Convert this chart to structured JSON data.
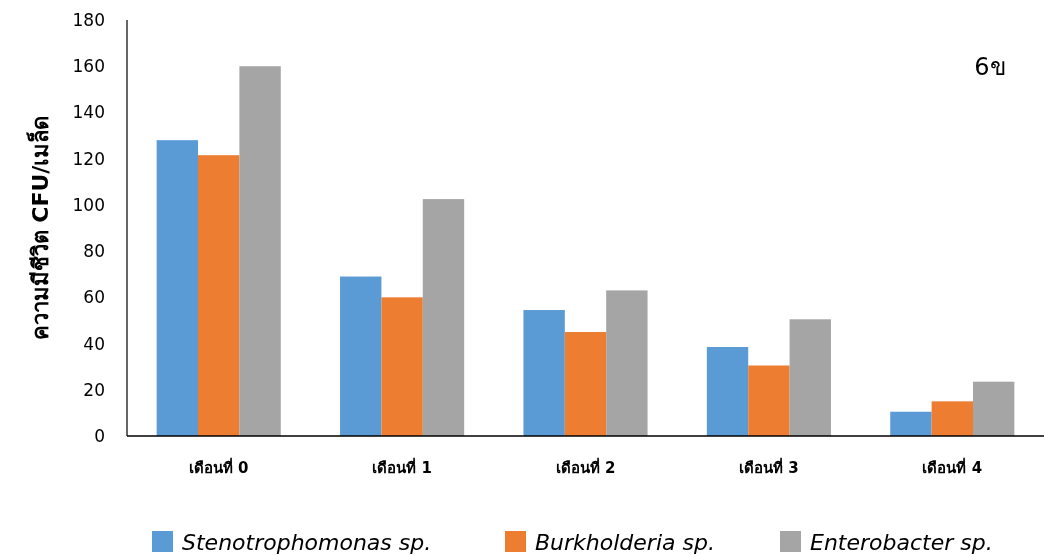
{
  "chart_data": {
    "type": "bar",
    "ylabel": "ความมีชีวิต CFU/เมล็ด",
    "categories": [
      "เดือนที่ 0",
      "เดือนที่ 1",
      "เดือนที่ 2",
      "เดือนที่ 3",
      "เดือนที่ 4"
    ],
    "series": [
      {
        "name": "Stenotrophomonas sp.",
        "color": "#5b9bd5",
        "values": [
          128,
          69,
          54.5,
          38.5,
          10.5
        ]
      },
      {
        "name": "Burkholderia sp.",
        "color": "#ed7d31",
        "values": [
          121.5,
          60,
          45,
          30.5,
          15
        ]
      },
      {
        "name": "Enterobacter sp.",
        "color": "#a5a5a5",
        "values": [
          160,
          102.5,
          63,
          50.5,
          23.5
        ]
      }
    ],
    "ylim": [
      0,
      180
    ],
    "yticks": [
      0,
      20,
      40,
      60,
      80,
      100,
      120,
      140,
      160,
      180
    ],
    "annotations": [
      "6ข"
    ],
    "legend": "bottom",
    "grid": false
  }
}
